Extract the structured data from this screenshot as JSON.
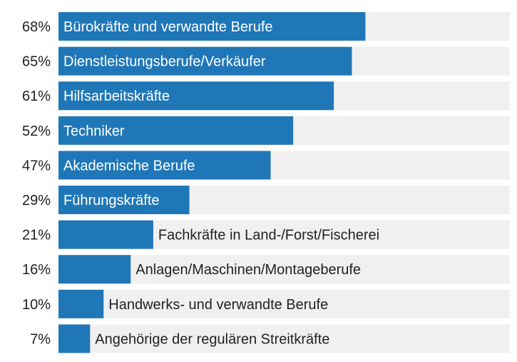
{
  "chart_data": {
    "type": "bar",
    "orientation": "horizontal",
    "categories": [
      "Bürokräfte und verwandte Berufe",
      "Dienstleistungsberufe/Verkäufer",
      "Hilfsarbeitskräfte",
      "Techniker",
      "Akademische Berufe",
      "Führungskräfte",
      "Fachkräfte in Land-/Forst/Fischerei",
      "Anlagen/Maschinen/Montageberufe",
      "Handwerks- und verwandte Berufe",
      "Angehörige der regulären Streitkräfte"
    ],
    "values": [
      68,
      65,
      61,
      52,
      47,
      29,
      21,
      16,
      10,
      7
    ],
    "value_labels": [
      "68%",
      "65%",
      "61%",
      "52%",
      "47%",
      "29%",
      "21%",
      "16%",
      "10%",
      "7%"
    ],
    "xlim": [
      0,
      100
    ],
    "grid": false,
    "legend": "none",
    "colors": {
      "bar": "#2077b8",
      "track": "#f0f0f0"
    }
  }
}
